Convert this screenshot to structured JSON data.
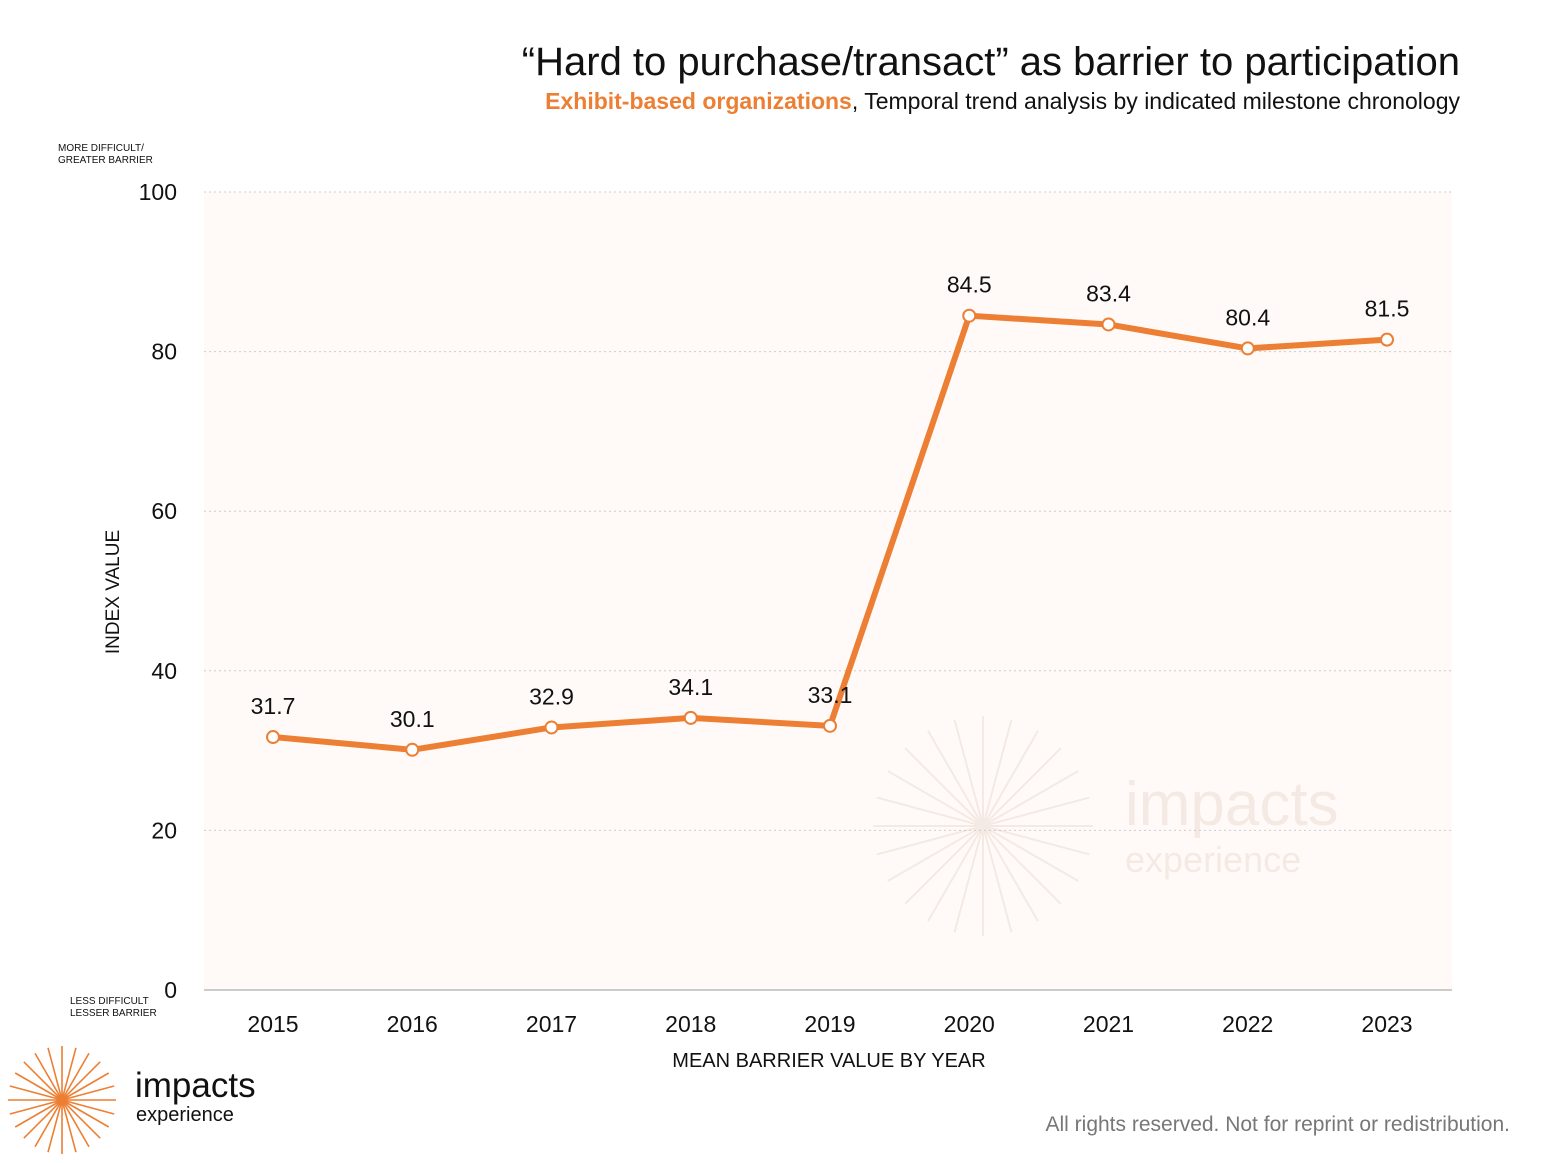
{
  "header": {
    "title": "“Hard to purchase/transact” as barrier to participation",
    "subtitle_highlight": "Exhibit-based organizations",
    "subtitle_rest": ", Temporal trend analysis by indicated milestone chronology"
  },
  "notes": {
    "top_line1": "MORE DIFFICULT/",
    "top_line2": "GREATER BARRIER",
    "bottom_line1": "LESS DIFFICULT",
    "bottom_line2": "LESSER BARRIER"
  },
  "chart_data": {
    "type": "line",
    "title": "“Hard to purchase/transact” as barrier to participation",
    "xlabel": "MEAN BARRIER VALUE BY YEAR",
    "ylabel": "INDEX VALUE",
    "x": [
      "2015",
      "2016",
      "2017",
      "2018",
      "2019",
      "2020",
      "2021",
      "2022",
      "2023"
    ],
    "values": [
      31.7,
      30.1,
      32.9,
      34.1,
      33.1,
      84.5,
      83.4,
      80.4,
      81.5
    ],
    "ylim": [
      0,
      100
    ],
    "yticks": [
      0,
      20,
      40,
      60,
      80,
      100
    ],
    "grid": true,
    "legend": "none",
    "colors": {
      "line": "#ec7f33",
      "plot_bg": "#fffaf8",
      "grid": "#cccccc"
    }
  },
  "watermark": {
    "word": "impacts",
    "sub": "experience"
  },
  "logo": {
    "word": "impacts",
    "sub": "experience",
    "icon": "starburst-icon"
  },
  "footer": {
    "text": "All rights reserved. Not for reprint or redistribution."
  }
}
